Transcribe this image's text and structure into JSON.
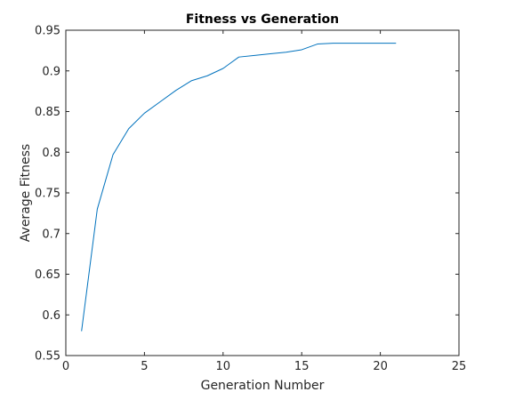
{
  "chart_data": {
    "type": "line",
    "title": "Fitness vs Generation",
    "xlabel": "Generation Number",
    "ylabel": "Average Fitness",
    "xlim": [
      0,
      25
    ],
    "ylim": [
      0.55,
      0.95
    ],
    "xticks": [
      0,
      5,
      10,
      15,
      20,
      25
    ],
    "yticks": [
      0.55,
      0.6,
      0.65,
      0.7,
      0.75,
      0.8,
      0.85,
      0.9,
      0.95
    ],
    "xtick_labels": [
      "0",
      "5",
      "10",
      "15",
      "20",
      "25"
    ],
    "ytick_labels": [
      "0.55",
      "0.6",
      "0.65",
      "0.7",
      "0.75",
      "0.8",
      "0.85",
      "0.9",
      "0.95"
    ],
    "grid": false,
    "box": true,
    "series": [
      {
        "color": "#0072bd",
        "x": [
          1,
          2,
          3,
          4,
          5,
          6,
          7,
          8,
          9,
          10,
          11,
          12,
          13,
          14,
          15,
          16,
          17,
          18,
          19,
          20,
          21
        ],
        "y": [
          0.58,
          0.73,
          0.797,
          0.829,
          0.848,
          0.862,
          0.876,
          0.888,
          0.894,
          0.903,
          0.917,
          0.919,
          0.921,
          0.923,
          0.926,
          0.933,
          0.934,
          0.934,
          0.934,
          0.934,
          0.934
        ]
      }
    ]
  }
}
